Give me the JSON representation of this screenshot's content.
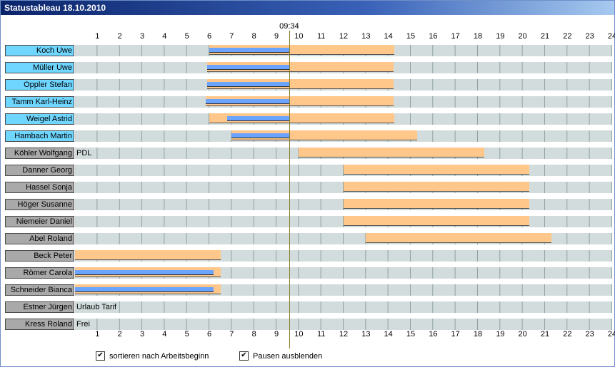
{
  "window": {
    "title": "Statustableau 18.10.2010"
  },
  "timeline": {
    "hours": [
      "1",
      "2",
      "3",
      "4",
      "5",
      "6",
      "7",
      "8",
      "9",
      "10",
      "11",
      "12",
      "13",
      "14",
      "15",
      "16",
      "17",
      "18",
      "19",
      "20",
      "21",
      "22",
      "23",
      "24"
    ],
    "now_label": "09:34",
    "now_hour": 9.57
  },
  "employees": [
    {
      "name": "Koch Uwe",
      "active": true,
      "planned": [
        6.0,
        14.25
      ],
      "worked": [
        6.0,
        9.57
      ]
    },
    {
      "name": "Müller Uwe",
      "active": true,
      "planned": [
        5.9,
        14.25
      ],
      "worked": [
        5.9,
        9.57
      ]
    },
    {
      "name": "Oppler Stefan",
      "active": true,
      "planned": [
        5.9,
        14.25
      ],
      "worked": [
        5.9,
        9.57
      ]
    },
    {
      "name": "Tamm Karl-Heinz",
      "active": true,
      "planned": [
        5.85,
        14.25
      ],
      "worked": [
        5.85,
        9.57
      ]
    },
    {
      "name": "Weigel Astrid",
      "active": true,
      "planned": [
        6.0,
        14.25
      ],
      "worked": [
        6.8,
        9.57
      ]
    },
    {
      "name": "Hambach Martin",
      "active": true,
      "planned": [
        7.0,
        15.3
      ],
      "worked": [
        7.0,
        9.57
      ]
    },
    {
      "name": "Köhler Wolfgang",
      "active": false,
      "planned": [
        10.0,
        18.3
      ],
      "note": "PDL"
    },
    {
      "name": "Danner Georg",
      "active": false,
      "planned": [
        12.0,
        20.3
      ]
    },
    {
      "name": "Hassel Sonja",
      "active": false,
      "planned": [
        12.0,
        20.3
      ]
    },
    {
      "name": "Höger Susanne",
      "active": false,
      "planned": [
        12.0,
        20.3
      ]
    },
    {
      "name": "Niemeier Daniel",
      "active": false,
      "planned": [
        12.0,
        20.3
      ]
    },
    {
      "name": "Abel Roland",
      "active": false,
      "planned": [
        13.0,
        21.3
      ]
    },
    {
      "name": "Beck Peter",
      "active": false,
      "planned": [
        0.0,
        6.5
      ]
    },
    {
      "name": "Römer Carola",
      "active": false,
      "planned": [
        0.0,
        6.5
      ],
      "worked": [
        0.0,
        6.2
      ]
    },
    {
      "name": "Schneider Bianca",
      "active": false,
      "planned": [
        0.0,
        6.5
      ],
      "worked": [
        0.0,
        6.2
      ]
    },
    {
      "name": "Estner Jürgen",
      "active": false,
      "note": "Urlaub Tarif"
    },
    {
      "name": "Kress Roland",
      "active": false,
      "note": "Frei"
    }
  ],
  "options": [
    {
      "label": "sortieren nach Arbeitsbeginn",
      "checked": true
    },
    {
      "label": "Pausen ausblenden",
      "checked": true
    }
  ]
}
